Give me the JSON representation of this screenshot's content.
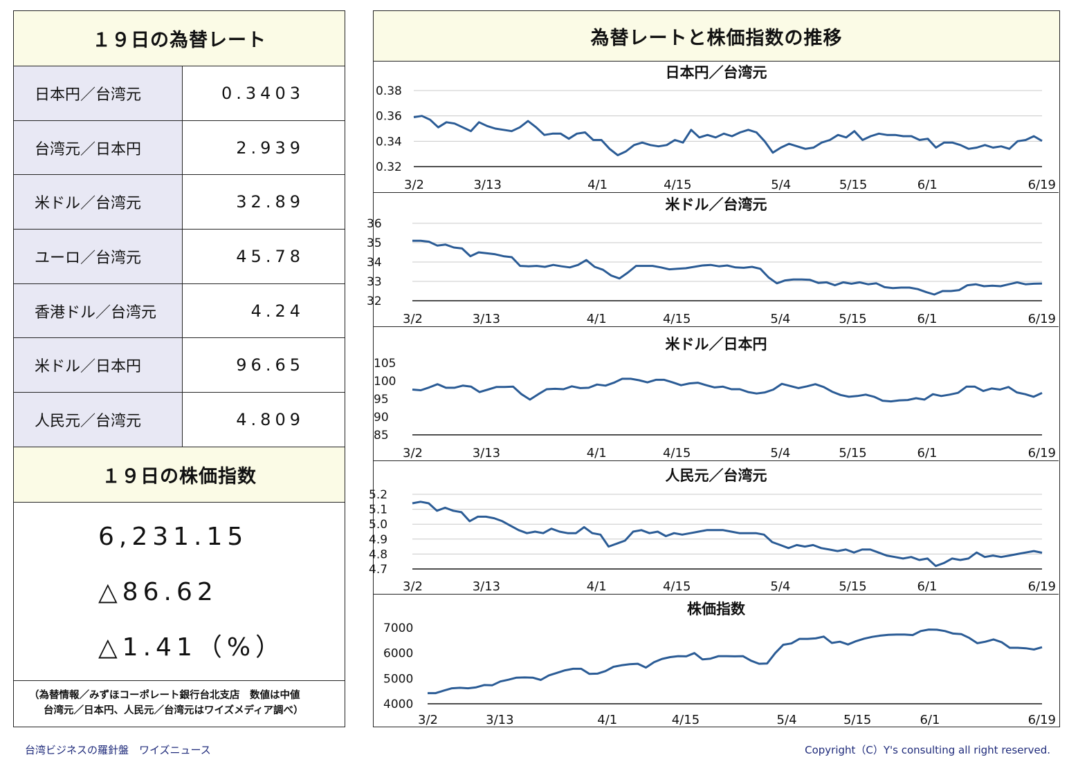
{
  "left_panel": {
    "rates_title": "１９日の為替レート",
    "rates": [
      {
        "label": "日本円／台湾元",
        "value": "0.3403"
      },
      {
        "label": "台湾元／日本円",
        "value": "2.939"
      },
      {
        "label": "米ドル／台湾元",
        "value": "32.89"
      },
      {
        "label": "ユーロ／台湾元",
        "value": "45.78"
      },
      {
        "label": "香港ドル／台湾元",
        "value": "4.24"
      },
      {
        "label": "米ドル／日本円",
        "value": "96.65"
      },
      {
        "label": "人民元／台湾元",
        "value": "4.809"
      }
    ],
    "stock_title": "１９日の株価指数",
    "stock_index": "6,231.15",
    "stock_change": "△86.62",
    "stock_change_pct": "△1.41（%）",
    "note_line1": "（為替情報／みずほコーポレート銀行台北支店　数値は中値",
    "note_line2": "台湾元／日本円、人民元／台湾元はワイズメディア調べ）"
  },
  "right_panel": {
    "title": "為替レートと株価指数の推移"
  },
  "footer": {
    "left": "台湾ビジネスの羅針盤　ワイズニュース",
    "right": "Copyright（C）Y's consulting all right reserved."
  },
  "colors": {
    "line": "#2a5b95",
    "header_bg": "#fbfbe6",
    "label_bg": "#e8e8f4",
    "footer_text": "#1e2a7a"
  },
  "chart_data": [
    {
      "type": "line",
      "title": "日本円／台湾元",
      "ylim": [
        0.32,
        0.38
      ],
      "yticks": [
        "0.32",
        "0.34",
        "0.36",
        "0.38"
      ],
      "xticks": [
        "3/2",
        "3/13",
        "4/1",
        "4/15",
        "5/4",
        "5/15",
        "6/1",
        "6/19"
      ],
      "grid": true,
      "values": [
        0.359,
        0.36,
        0.357,
        0.351,
        0.355,
        0.354,
        0.351,
        0.348,
        0.355,
        0.352,
        0.35,
        0.349,
        0.348,
        0.351,
        0.356,
        0.351,
        0.345,
        0.346,
        0.346,
        0.342,
        0.346,
        0.347,
        0.341,
        0.341,
        0.334,
        0.329,
        0.332,
        0.337,
        0.339,
        0.337,
        0.336,
        0.337,
        0.341,
        0.339,
        0.349,
        0.343,
        0.345,
        0.343,
        0.346,
        0.344,
        0.347,
        0.349,
        0.347,
        0.34,
        0.331,
        0.335,
        0.338,
        0.336,
        0.334,
        0.335,
        0.339,
        0.341,
        0.345,
        0.343,
        0.348,
        0.341,
        0.344,
        0.346,
        0.345,
        0.345,
        0.344,
        0.344,
        0.341,
        0.342,
        0.335,
        0.339,
        0.339,
        0.337,
        0.334,
        0.335,
        0.337,
        0.335,
        0.336,
        0.334,
        0.34,
        0.341,
        0.344,
        0.3403
      ]
    },
    {
      "type": "line",
      "title": "米ドル／台湾元",
      "ylim": [
        32,
        36
      ],
      "yticks": [
        "32",
        "33",
        "34",
        "35",
        "36"
      ],
      "xticks": [
        "3/2",
        "3/13",
        "4/1",
        "4/15",
        "5/4",
        "5/15",
        "6/1",
        "6/19"
      ],
      "grid": true,
      "values": [
        35.1,
        35.1,
        35.05,
        34.85,
        34.9,
        34.75,
        34.7,
        34.3,
        34.5,
        34.45,
        34.4,
        34.3,
        34.25,
        33.8,
        33.78,
        33.8,
        33.75,
        33.85,
        33.78,
        33.72,
        33.85,
        34.1,
        33.75,
        33.6,
        33.3,
        33.15,
        33.45,
        33.8,
        33.8,
        33.8,
        33.72,
        33.62,
        33.65,
        33.68,
        33.75,
        33.82,
        33.85,
        33.78,
        33.82,
        33.72,
        33.7,
        33.75,
        33.65,
        33.2,
        32.9,
        33.05,
        33.1,
        33.1,
        33.08,
        32.92,
        32.95,
        32.8,
        32.95,
        32.88,
        32.95,
        32.85,
        32.9,
        32.7,
        32.65,
        32.68,
        32.68,
        32.6,
        32.45,
        32.32,
        32.5,
        32.5,
        32.55,
        32.8,
        32.85,
        32.75,
        32.78,
        32.75,
        32.85,
        32.95,
        32.85,
        32.88,
        32.89
      ]
    },
    {
      "type": "line",
      "title": "米ドル／日本円",
      "ylim": [
        85,
        105
      ],
      "yticks": [
        "85",
        "90",
        "95",
        "100",
        "105"
      ],
      "xticks": [
        "3/2",
        "3/13",
        "4/1",
        "4/15",
        "5/4",
        "5/15",
        "6/1",
        "6/19"
      ],
      "grid": false,
      "values": [
        97.6,
        97.4,
        98.2,
        99.1,
        98.1,
        98.1,
        98.7,
        98.4,
        96.9,
        97.6,
        98.3,
        98.3,
        98.4,
        96.3,
        94.8,
        96.3,
        97.7,
        97.8,
        97.7,
        98.5,
        98.0,
        98.1,
        99.0,
        98.7,
        99.5,
        100.6,
        100.6,
        100.2,
        99.6,
        100.3,
        100.3,
        99.6,
        98.8,
        99.3,
        99.5,
        98.8,
        98.2,
        98.4,
        97.7,
        97.7,
        96.9,
        96.5,
        96.8,
        97.6,
        99.2,
        98.6,
        98.0,
        98.5,
        99.1,
        98.3,
        97.0,
        96.1,
        95.6,
        95.8,
        96.2,
        95.6,
        94.5,
        94.3,
        94.6,
        94.7,
        95.2,
        94.8,
        96.3,
        95.8,
        96.2,
        96.7,
        98.4,
        98.4,
        97.2,
        97.9,
        97.6,
        98.3,
        96.8,
        96.3,
        95.6,
        96.65
      ]
    },
    {
      "type": "line",
      "title": "人民元／台湾元",
      "ylim": [
        4.7,
        5.2
      ],
      "yticks": [
        "4.7",
        "4.8",
        "4.9",
        "5.0",
        "5.1",
        "5.2"
      ],
      "xticks": [
        "3/2",
        "3/13",
        "4/1",
        "4/15",
        "5/4",
        "5/15",
        "6/1",
        "6/19"
      ],
      "grid": true,
      "values": [
        5.14,
        5.15,
        5.14,
        5.09,
        5.11,
        5.09,
        5.08,
        5.02,
        5.05,
        5.05,
        5.04,
        5.02,
        4.99,
        4.96,
        4.94,
        4.95,
        4.94,
        4.97,
        4.95,
        4.94,
        4.94,
        4.98,
        4.94,
        4.93,
        4.85,
        4.87,
        4.89,
        4.95,
        4.96,
        4.94,
        4.95,
        4.92,
        4.94,
        4.93,
        4.94,
        4.95,
        4.96,
        4.96,
        4.96,
        4.95,
        4.94,
        4.94,
        4.94,
        4.93,
        4.88,
        4.86,
        4.84,
        4.86,
        4.85,
        4.86,
        4.84,
        4.83,
        4.82,
        4.83,
        4.81,
        4.83,
        4.83,
        4.81,
        4.79,
        4.78,
        4.77,
        4.78,
        4.76,
        4.77,
        4.72,
        4.74,
        4.77,
        4.76,
        4.77,
        4.81,
        4.78,
        4.79,
        4.78,
        4.79,
        4.8,
        4.81,
        4.82,
        4.809
      ]
    },
    {
      "type": "line",
      "title": "株価指数",
      "ylim": [
        4000,
        7000
      ],
      "yticks": [
        "4000",
        "5000",
        "6000",
        "7000"
      ],
      "xticks": [
        "3/2",
        "3/13",
        "4/1",
        "4/15",
        "5/4",
        "5/15",
        "6/1",
        "6/19"
      ],
      "grid": false,
      "values": [
        4420,
        4420,
        4520,
        4610,
        4630,
        4610,
        4650,
        4740,
        4730,
        4880,
        4950,
        5030,
        5040,
        5030,
        4940,
        5120,
        5220,
        5320,
        5380,
        5380,
        5180,
        5190,
        5290,
        5460,
        5520,
        5560,
        5580,
        5430,
        5640,
        5770,
        5840,
        5880,
        5870,
        6000,
        5750,
        5780,
        5880,
        5880,
        5870,
        5880,
        5700,
        5580,
        5590,
        6000,
        6330,
        6380,
        6560,
        6560,
        6580,
        6650,
        6400,
        6450,
        6340,
        6470,
        6570,
        6640,
        6690,
        6720,
        6730,
        6730,
        6710,
        6870,
        6930,
        6920,
        6870,
        6770,
        6750,
        6600,
        6390,
        6450,
        6540,
        6430,
        6210,
        6210,
        6190,
        6140,
        6231.15
      ]
    }
  ]
}
